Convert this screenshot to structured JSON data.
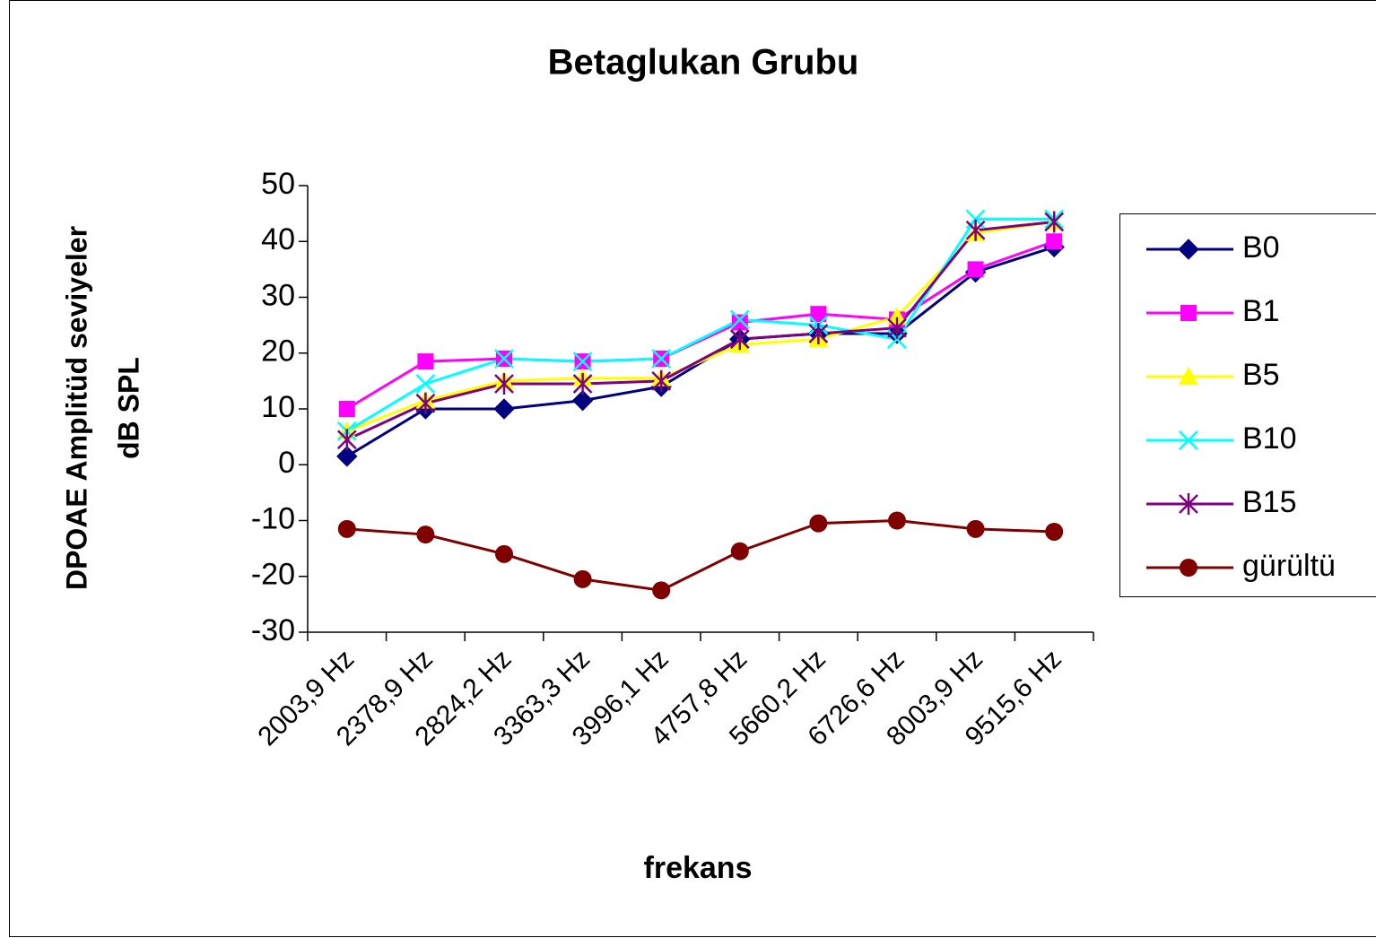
{
  "chart_data": {
    "type": "line",
    "title": "Betaglukan Grubu",
    "xlabel": "frekans",
    "ylabel": [
      "DPOAE Amplitüd seviyeler",
      "dB SPL"
    ],
    "categories": [
      "2003,9 Hz",
      "2378,9 Hz",
      "2824,2 Hz",
      "3363,3 Hz",
      "3996,1 Hz",
      "4757,8 Hz",
      "5660,2 Hz",
      "6726,6 Hz",
      "8003,9 Hz",
      "9515,6 Hz"
    ],
    "ylim": [
      -30,
      50
    ],
    "yticks": [
      -30,
      -20,
      -10,
      0,
      10,
      20,
      30,
      40,
      50
    ],
    "grid": false,
    "legend": "right",
    "series": [
      {
        "name": "B0",
        "color": "#000080",
        "marker": "diamond",
        "values": [
          1.5,
          10,
          10,
          11.5,
          14,
          22.5,
          23.5,
          23.5,
          34.5,
          39
        ]
      },
      {
        "name": "B1",
        "color": "#ff00ff",
        "marker": "square",
        "values": [
          10,
          18.5,
          19,
          18.5,
          19,
          25.5,
          27,
          26,
          35,
          40
        ]
      },
      {
        "name": "B5",
        "color": "#ffff00",
        "marker": "triangle",
        "values": [
          6,
          11.5,
          15,
          15.5,
          15.5,
          21.5,
          22.5,
          26.5,
          41.5,
          43.5
        ]
      },
      {
        "name": "B10",
        "color": "#00ffff",
        "marker": "x",
        "values": [
          6,
          14.5,
          19,
          18.5,
          19,
          26,
          25,
          22.5,
          44,
          44
        ]
      },
      {
        "name": "B15",
        "color": "#800080",
        "marker": "star",
        "values": [
          4.5,
          11,
          14.5,
          14.5,
          15,
          22.5,
          23.5,
          24.5,
          42,
          43.5
        ]
      },
      {
        "name": "gürültü",
        "color": "#800000",
        "marker": "circle",
        "values": [
          -11.5,
          -12.5,
          -16,
          -20.5,
          -22.5,
          -15.5,
          -10.5,
          -10,
          -11.5,
          -12
        ]
      }
    ]
  }
}
